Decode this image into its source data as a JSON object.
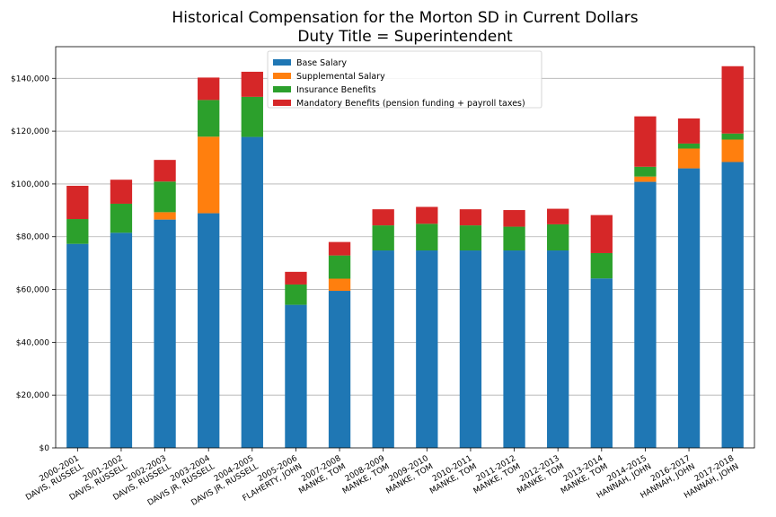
{
  "chart_data": {
    "type": "bar",
    "stacked": true,
    "title": "Historical Compensation for the Morton SD in Current Dollars",
    "subtitle": "Duty Title = Superintendent",
    "xlabel": "",
    "ylabel": "",
    "ylim": [
      0,
      152000
    ],
    "yticks": [
      0,
      20000,
      40000,
      60000,
      80000,
      100000,
      120000,
      140000
    ],
    "ytick_labels": [
      "$0",
      "$20,000",
      "$40,000",
      "$60,000",
      "$80,000",
      "$100,000",
      "$120,000",
      "$140,000"
    ],
    "grid": "horizontal",
    "legend_position": "top-center",
    "categories": [
      [
        "2000-2001",
        "DAVIS, RUSSELL"
      ],
      [
        "2001-2002",
        "DAVIS, RUSSELL"
      ],
      [
        "2002-2003",
        "DAVIS, RUSSELL"
      ],
      [
        "2003-2004",
        "DAVIS JR, RUSSELL"
      ],
      [
        "2004-2005",
        "DAVIS JR, RUSSELL"
      ],
      [
        "2005-2006",
        "FLAHERTY, JOHN"
      ],
      [
        "2007-2008",
        "MANKE, TOM"
      ],
      [
        "2008-2009",
        "MANKE, TOM"
      ],
      [
        "2009-2010",
        "MANKE, TOM"
      ],
      [
        "2010-2011",
        "MANKE, TOM"
      ],
      [
        "2011-2012",
        "MANKE, TOM"
      ],
      [
        "2012-2013",
        "MANKE, TOM"
      ],
      [
        "2013-2014",
        "MANKE, TOM"
      ],
      [
        "2014-2015",
        "HANNAH, JOHN"
      ],
      [
        "2016-2017",
        "HANNAH, JOHN"
      ],
      [
        "2017-2018",
        "HANNAH, JOHN"
      ]
    ],
    "series": [
      {
        "name": "Base Salary",
        "color": "#1f77b4",
        "values": [
          77300,
          81500,
          86500,
          88900,
          117800,
          54200,
          59500,
          74800,
          74800,
          74800,
          74800,
          74800,
          64200,
          100800,
          105900,
          108300
        ]
      },
      {
        "name": "Supplemental Salary",
        "color": "#ff7f0e",
        "values": [
          0,
          0,
          2800,
          29000,
          0,
          0,
          4600,
          0,
          0,
          0,
          0,
          0,
          0,
          2000,
          7500,
          8500
        ]
      },
      {
        "name": "Insurance Benefits",
        "color": "#2ca02c",
        "values": [
          9400,
          11000,
          11600,
          13900,
          15200,
          7700,
          8800,
          9500,
          10100,
          9500,
          9000,
          9900,
          9600,
          3700,
          1900,
          2300
        ]
      },
      {
        "name": "Mandatory Benefits (pension funding + payroll taxes)",
        "color": "#d62728",
        "values": [
          12600,
          9100,
          8200,
          8500,
          9500,
          4800,
          5100,
          6100,
          6400,
          6100,
          6300,
          5900,
          14400,
          19100,
          9500,
          25500
        ]
      }
    ]
  }
}
